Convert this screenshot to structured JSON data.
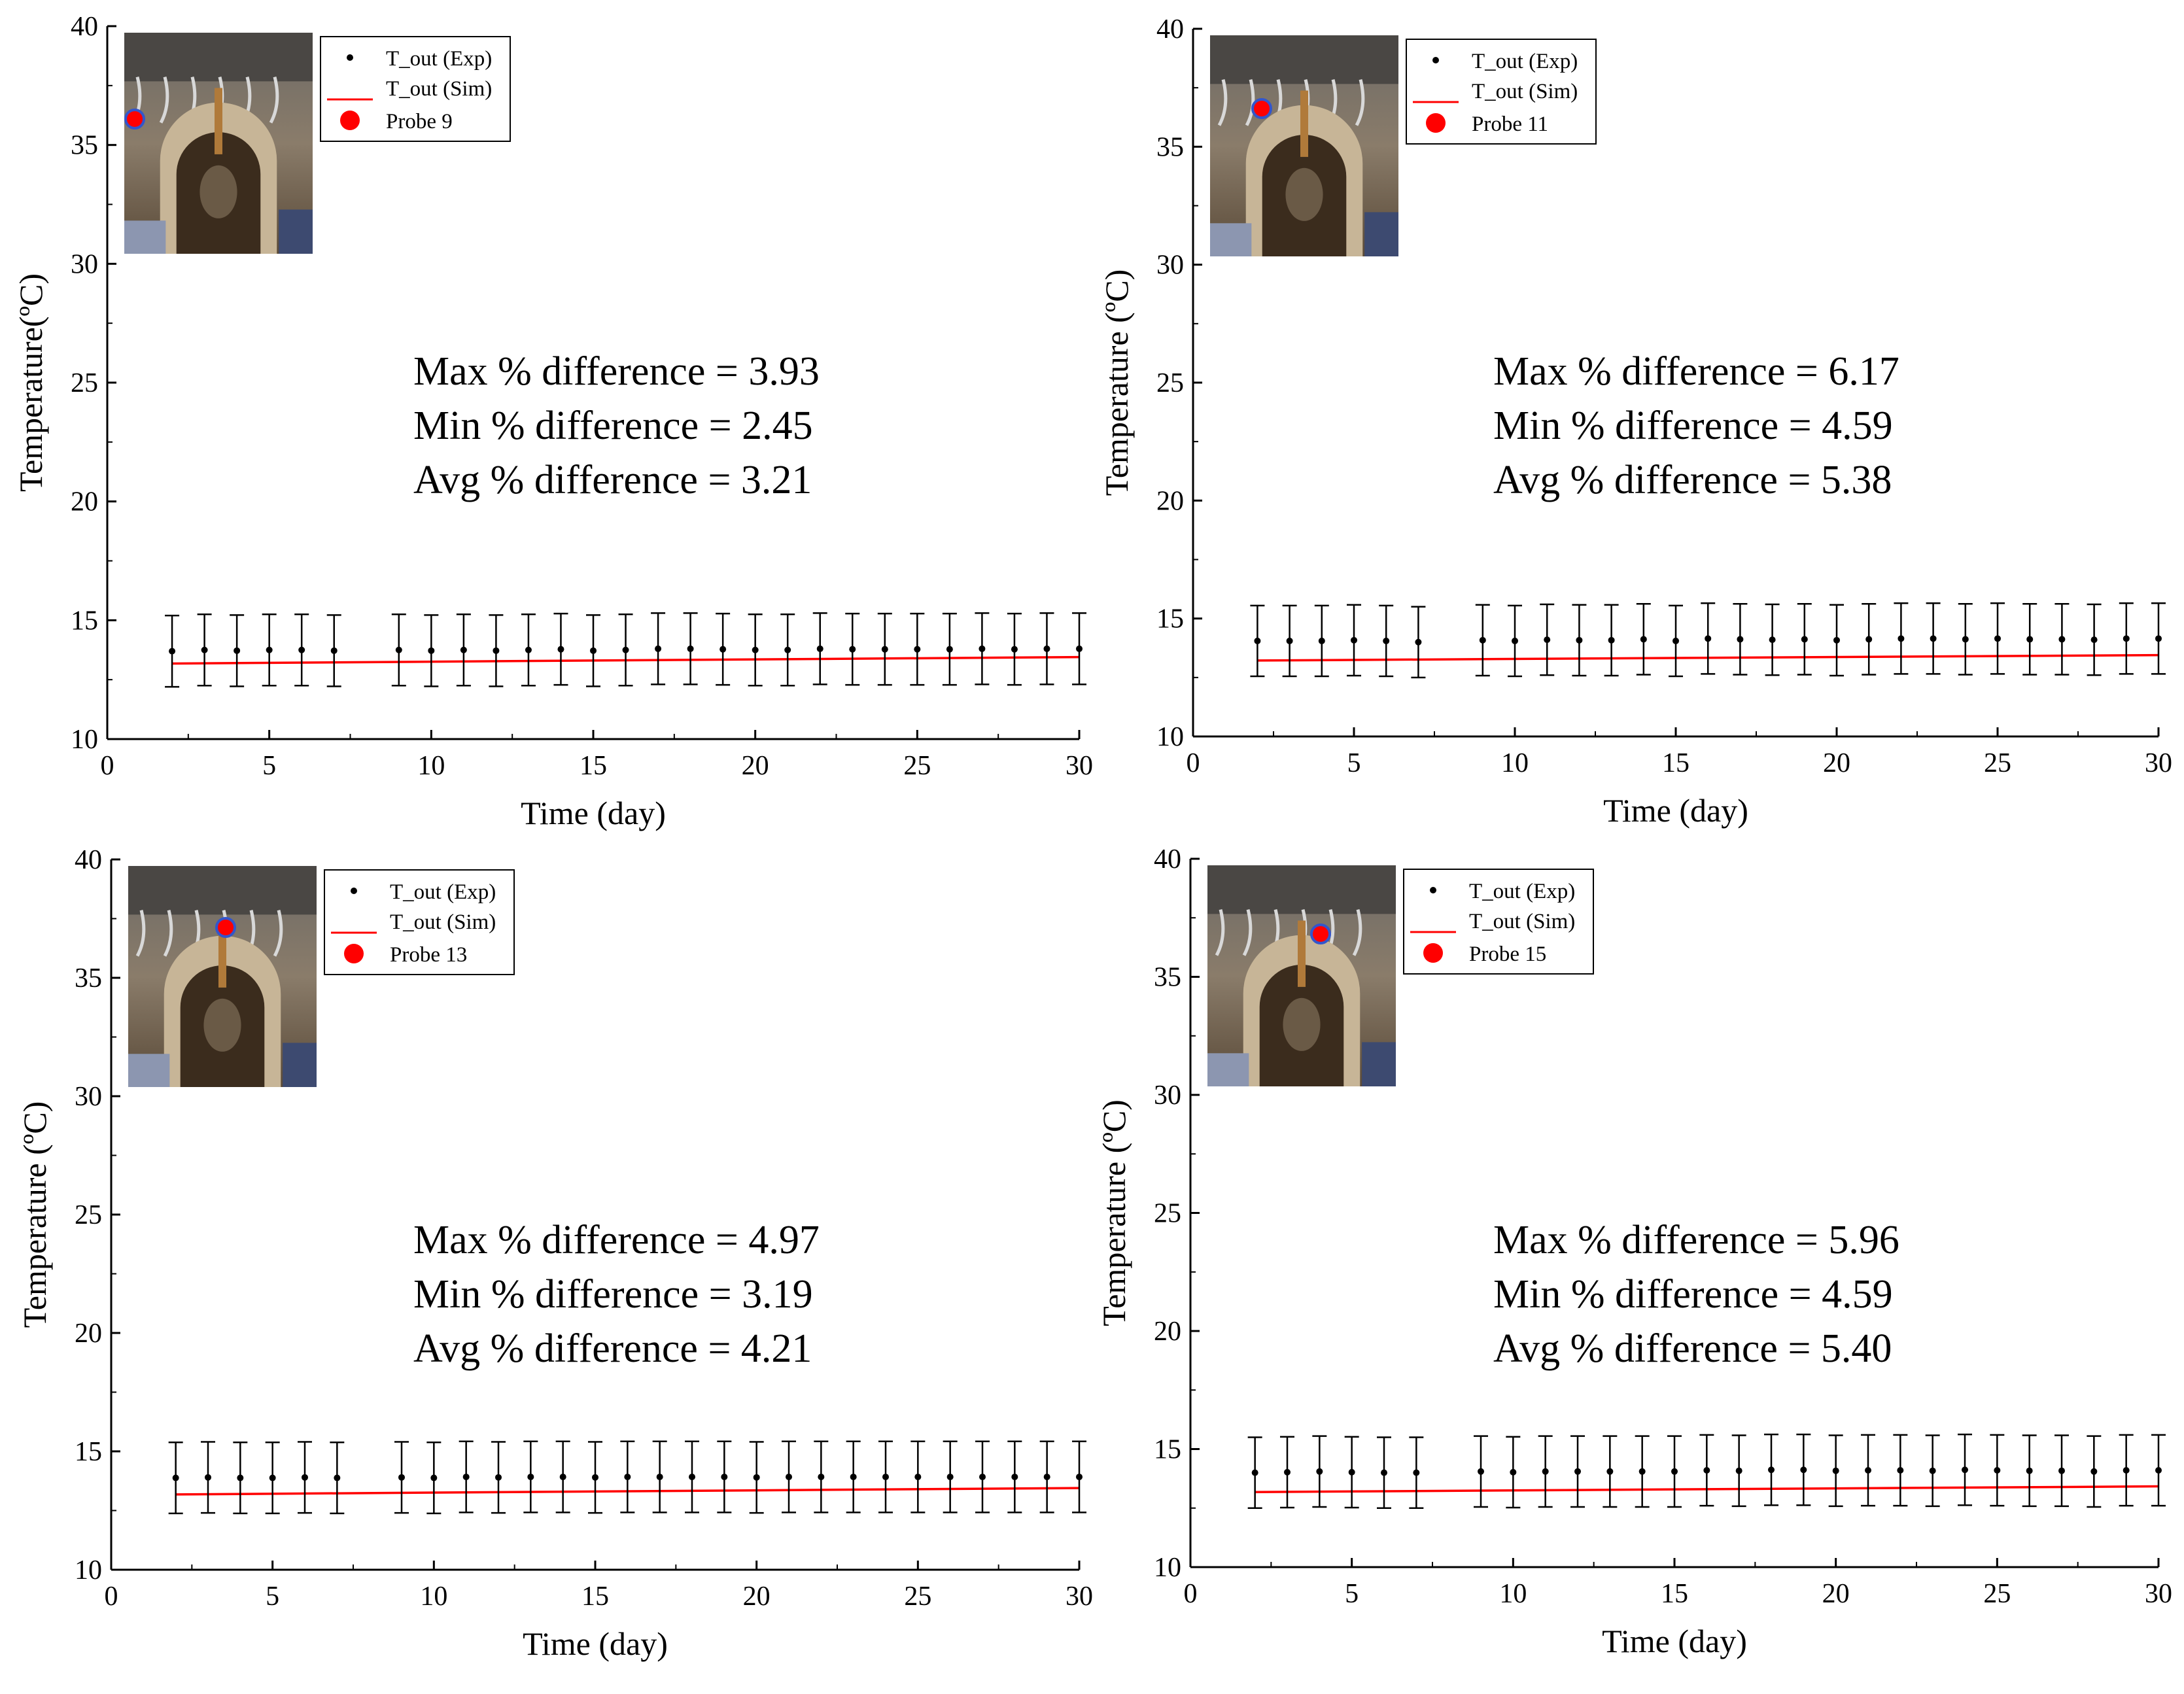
{
  "colors": {
    "exp": "#000000",
    "sim": "#ff0000",
    "probe": "#ff0000",
    "probe_ring": "#3355cc",
    "axis": "#000000",
    "background": "#ffffff"
  },
  "legend_labels": {
    "exp": "T_out (Exp)",
    "sim": "T_out (Sim)"
  },
  "chart_data": [
    {
      "type": "scatter",
      "panel": "top-left",
      "xlabel": "Time (day)",
      "ylabel": "Temperature(ºC)",
      "xlim": [
        0,
        30
      ],
      "ylim": [
        10,
        40
      ],
      "xticks": [
        "0",
        "5",
        "10",
        "15",
        "20",
        "25",
        "30"
      ],
      "yticks": [
        "10",
        "15",
        "20",
        "25",
        "30",
        "35",
        "40"
      ],
      "legend_placement": "top-left",
      "probe_label": "Probe 9",
      "stats": [
        "Max % difference = 3.93",
        "Min % difference = 2.45",
        "Avg % difference = 3.21"
      ],
      "series": [
        {
          "name": "T_out (Exp)",
          "x": [
            2,
            3,
            4,
            5,
            6,
            7,
            9,
            10,
            11,
            12,
            13,
            14,
            15,
            16,
            17,
            18,
            19,
            20,
            21,
            22,
            23,
            24,
            25,
            26,
            27,
            28,
            29,
            30
          ],
          "y": [
            13.7,
            13.75,
            13.72,
            13.75,
            13.75,
            13.72,
            13.75,
            13.72,
            13.75,
            13.72,
            13.75,
            13.78,
            13.72,
            13.75,
            13.8,
            13.8,
            13.78,
            13.75,
            13.75,
            13.8,
            13.78,
            13.78,
            13.78,
            13.78,
            13.8,
            13.78,
            13.8,
            13.8
          ],
          "error": 1.5
        },
        {
          "name": "T_out (Sim)",
          "x": [
            2,
            30
          ],
          "y": [
            13.18,
            13.45
          ]
        }
      ]
    },
    {
      "type": "scatter",
      "panel": "top-right",
      "xlabel": "Time (day)",
      "ylabel": "Temperature (ºC)",
      "xlim": [
        0,
        30
      ],
      "ylim": [
        10,
        40
      ],
      "xticks": [
        "0",
        "5",
        "10",
        "15",
        "20",
        "25",
        "30"
      ],
      "yticks": [
        "10",
        "15",
        "20",
        "25",
        "30",
        "35",
        "40"
      ],
      "legend_placement": "top-left",
      "probe_label": "Probe 11",
      "stats": [
        "Max % difference = 6.17",
        "Min % difference = 4.59",
        "Avg % difference = 5.38"
      ],
      "series": [
        {
          "name": "T_out (Exp)",
          "x": [
            2,
            3,
            4,
            5,
            6,
            7,
            9,
            10,
            11,
            12,
            13,
            14,
            15,
            16,
            17,
            18,
            19,
            20,
            21,
            22,
            23,
            24,
            25,
            26,
            27,
            28,
            29,
            30
          ],
          "y": [
            14.05,
            14.05,
            14.05,
            14.08,
            14.05,
            14.0,
            14.08,
            14.05,
            14.1,
            14.08,
            14.08,
            14.12,
            14.05,
            14.15,
            14.12,
            14.1,
            14.12,
            14.08,
            14.12,
            14.15,
            14.15,
            14.12,
            14.15,
            14.12,
            14.12,
            14.1,
            14.15,
            14.15
          ],
          "error": 1.5
        },
        {
          "name": "T_out (Sim)",
          "x": [
            2,
            30
          ],
          "y": [
            13.22,
            13.45
          ]
        }
      ]
    },
    {
      "type": "scatter",
      "panel": "bottom-left",
      "xlabel": "Time (day)",
      "ylabel": "Temperature (ºC)",
      "xlim": [
        0,
        30
      ],
      "ylim": [
        10,
        40
      ],
      "xticks": [
        "0",
        "5",
        "10",
        "15",
        "20",
        "25",
        "30"
      ],
      "yticks": [
        "10",
        "15",
        "20",
        "25",
        "30",
        "35",
        "40"
      ],
      "legend_placement": "top-left",
      "probe_label": "Probe 13",
      "stats": [
        "Max % difference = 4.97",
        "Min % difference = 3.19",
        "Avg % difference = 4.21"
      ],
      "series": [
        {
          "name": "T_out (Exp)",
          "x": [
            2,
            3,
            4,
            5,
            6,
            7,
            9,
            10,
            11,
            12,
            13,
            14,
            15,
            16,
            17,
            18,
            19,
            20,
            21,
            22,
            23,
            24,
            25,
            26,
            27,
            28,
            29,
            30
          ],
          "y": [
            13.88,
            13.9,
            13.88,
            13.88,
            13.9,
            13.88,
            13.9,
            13.88,
            13.92,
            13.9,
            13.92,
            13.92,
            13.9,
            13.92,
            13.92,
            13.92,
            13.92,
            13.9,
            13.92,
            13.92,
            13.92,
            13.92,
            13.92,
            13.92,
            13.92,
            13.92,
            13.92,
            13.92
          ],
          "error": 1.5
        },
        {
          "name": "T_out (Sim)",
          "x": [
            2,
            30
          ],
          "y": [
            13.18,
            13.45
          ]
        }
      ]
    },
    {
      "type": "scatter",
      "panel": "bottom-right",
      "xlabel": "Time (day)",
      "ylabel": "Temperature (ºC)",
      "xlim": [
        0,
        30
      ],
      "ylim": [
        10,
        40
      ],
      "xticks": [
        "0",
        "5",
        "10",
        "15",
        "20",
        "25",
        "30"
      ],
      "yticks": [
        "10",
        "15",
        "20",
        "25",
        "30",
        "35",
        "40"
      ],
      "legend_placement": "top-left",
      "probe_label": "Probe 15",
      "stats": [
        "Max % difference = 5.96",
        "Min % difference = 4.59",
        "Avg % difference = 5.40"
      ],
      "series": [
        {
          "name": "T_out (Exp)",
          "x": [
            2,
            3,
            4,
            5,
            6,
            7,
            9,
            10,
            11,
            12,
            13,
            14,
            15,
            16,
            17,
            18,
            19,
            20,
            21,
            22,
            23,
            24,
            25,
            26,
            27,
            28,
            29,
            30
          ],
          "y": [
            14.0,
            14.02,
            14.05,
            14.02,
            14.0,
            14.0,
            14.05,
            14.02,
            14.05,
            14.05,
            14.05,
            14.05,
            14.05,
            14.1,
            14.08,
            14.12,
            14.12,
            14.08,
            14.1,
            14.1,
            14.08,
            14.12,
            14.1,
            14.08,
            14.08,
            14.05,
            14.1,
            14.1
          ],
          "error": 1.5
        },
        {
          "name": "T_out (Sim)",
          "x": [
            2,
            30
          ],
          "y": [
            13.18,
            13.42
          ]
        }
      ]
    }
  ]
}
